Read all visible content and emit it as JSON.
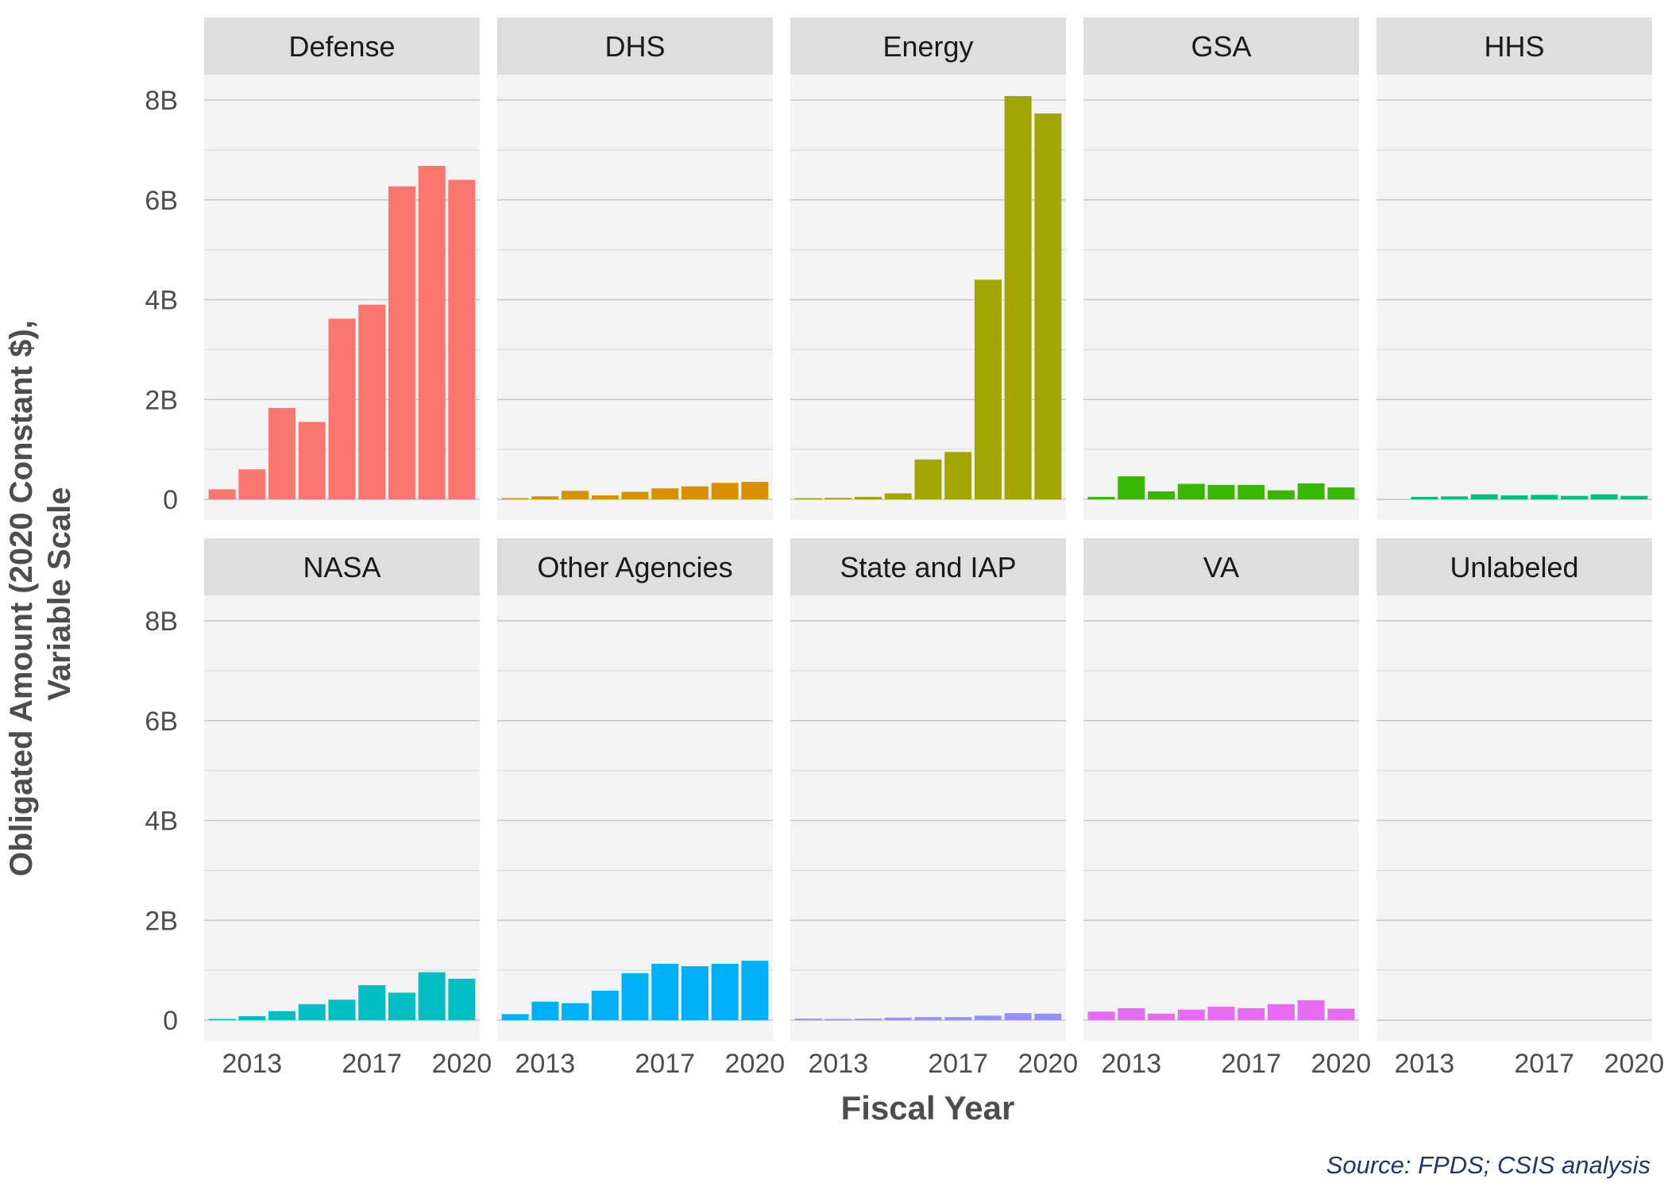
{
  "chart_data": {
    "type": "bar",
    "layout": "facet-grid",
    "ylabel_lines": [
      "Obligated Amount (2020 Constant $),",
      "Variable Scale"
    ],
    "xlabel": "Fiscal Year",
    "caption": "Source: FPDS; CSIS analysis",
    "y_ticks": [
      {
        "value": 0,
        "label": "0"
      },
      {
        "value": 2,
        "label": "2B"
      },
      {
        "value": 4,
        "label": "4B"
      },
      {
        "value": 6,
        "label": "6B"
      },
      {
        "value": 8,
        "label": "8B"
      }
    ],
    "y_unit": "billions",
    "ylim": [
      0,
      8
    ],
    "x_ticks": [
      {
        "value": 2013,
        "label": "2013"
      },
      {
        "value": 2017,
        "label": "2017"
      },
      {
        "value": 2020,
        "label": "2020"
      }
    ],
    "x": [
      2012,
      2013,
      2014,
      2015,
      2016,
      2017,
      2018,
      2019,
      2020
    ],
    "grid": true,
    "legend": "none",
    "panels": [
      {
        "name": "Defense",
        "color": "#F8766D",
        "values": [
          0.2,
          0.6,
          1.83,
          1.55,
          3.62,
          3.9,
          6.27,
          6.68,
          6.4
        ]
      },
      {
        "name": "DHS",
        "color": "#D89000",
        "values": [
          0.02,
          0.06,
          0.17,
          0.08,
          0.15,
          0.22,
          0.26,
          0.33,
          0.35
        ]
      },
      {
        "name": "Energy",
        "color": "#A3A500",
        "values": [
          0.01,
          0.03,
          0.05,
          0.12,
          0.8,
          0.95,
          4.4,
          8.08,
          7.73
        ]
      },
      {
        "name": "GSA",
        "color": "#39B600",
        "values": [
          0.05,
          0.46,
          0.16,
          0.31,
          0.29,
          0.29,
          0.18,
          0.32,
          0.24
        ]
      },
      {
        "name": "HHS",
        "color": "#00BF7D",
        "values": [
          0.0,
          0.05,
          0.06,
          0.1,
          0.08,
          0.09,
          0.07,
          0.1,
          0.07
        ]
      },
      {
        "name": "NASA",
        "color": "#00BFC4",
        "values": [
          0.02,
          0.08,
          0.18,
          0.32,
          0.41,
          0.7,
          0.55,
          0.96,
          0.83
        ]
      },
      {
        "name": "Other Agencies",
        "color": "#00B0F6",
        "values": [
          0.12,
          0.37,
          0.34,
          0.59,
          0.94,
          1.13,
          1.08,
          1.13,
          1.19
        ]
      },
      {
        "name": "State and IAP",
        "color": "#9590FF",
        "values": [
          0.03,
          0.02,
          0.03,
          0.05,
          0.06,
          0.06,
          0.09,
          0.14,
          0.13
        ]
      },
      {
        "name": "VA",
        "color": "#E76BF3",
        "values": [
          0.17,
          0.24,
          0.13,
          0.21,
          0.27,
          0.24,
          0.32,
          0.4,
          0.23
        ]
      },
      {
        "name": "Unlabeled",
        "color": "#FF62BC",
        "values": [
          0,
          0,
          0,
          0,
          0,
          0,
          0,
          0,
          0
        ]
      }
    ]
  }
}
